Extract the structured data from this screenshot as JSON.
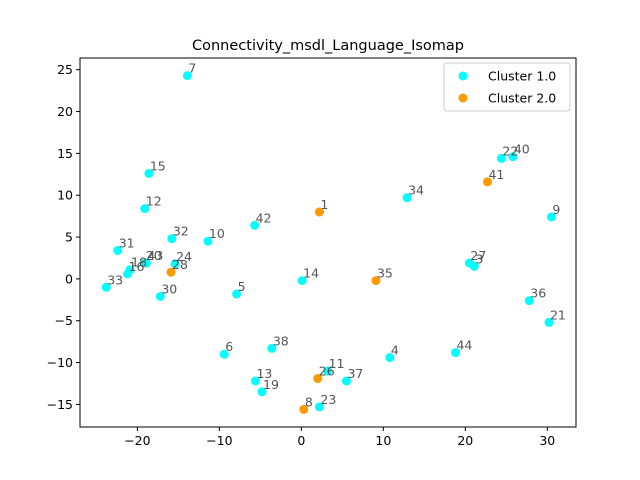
{
  "chart_data": {
    "type": "scatter",
    "title": "Connectivity_msdl_Language_Isomap",
    "xlabel": "",
    "ylabel": "",
    "xlim": [
      -27,
      33.5
    ],
    "ylim": [
      -17.7,
      26.4
    ],
    "xticks": [
      -20,
      -10,
      0,
      10,
      20,
      30
    ],
    "yticks": [
      -15,
      -10,
      -5,
      0,
      5,
      10,
      15,
      20,
      25
    ],
    "xtick_labels": [
      "−20",
      "−10",
      "0",
      "10",
      "20",
      "30"
    ],
    "ytick_labels": [
      "−15",
      "−10",
      "−5",
      "0",
      "5",
      "10",
      "15",
      "20",
      "25"
    ],
    "grid": false,
    "legend_position": "top-right",
    "series": [
      {
        "name": "Cluster 1.0",
        "color": "#00ffff",
        "points": [
          {
            "label": "3",
            "x": 21.1,
            "y": 1.5
          },
          {
            "label": "4",
            "x": 10.8,
            "y": -9.4
          },
          {
            "label": "5",
            "x": -7.9,
            "y": -1.8
          },
          {
            "label": "6",
            "x": -9.4,
            "y": -9.0
          },
          {
            "label": "7",
            "x": -13.9,
            "y": 24.3
          },
          {
            "label": "9",
            "x": 30.5,
            "y": 7.4
          },
          {
            "label": "10",
            "x": -11.4,
            "y": 4.5
          },
          {
            "label": "11",
            "x": 3.2,
            "y": -11.0
          },
          {
            "label": "12",
            "x": -19.1,
            "y": 8.4
          },
          {
            "label": "13",
            "x": -5.6,
            "y": -12.2
          },
          {
            "label": "14",
            "x": 0.1,
            "y": -0.2
          },
          {
            "label": "15",
            "x": -18.6,
            "y": 12.6
          },
          {
            "label": "16",
            "x": -21.2,
            "y": 0.6
          },
          {
            "label": "18",
            "x": -20.9,
            "y": 1.1
          },
          {
            "label": "19",
            "x": -4.8,
            "y": -13.5
          },
          {
            "label": "20",
            "x": -19.1,
            "y": 1.9
          },
          {
            "label": "21",
            "x": 30.2,
            "y": -5.2
          },
          {
            "label": "22",
            "x": 24.4,
            "y": 14.4
          },
          {
            "label": "23",
            "x": 2.2,
            "y": -15.3
          },
          {
            "label": "24",
            "x": -15.4,
            "y": 1.8
          },
          {
            "label": "27",
            "x": 20.5,
            "y": 1.9
          },
          {
            "label": "30",
            "x": -17.2,
            "y": -2.1
          },
          {
            "label": "31",
            "x": -22.4,
            "y": 3.4
          },
          {
            "label": "32",
            "x": -15.8,
            "y": 4.8
          },
          {
            "label": "33",
            "x": -23.8,
            "y": -1.0
          },
          {
            "label": "34",
            "x": 12.9,
            "y": 9.7
          },
          {
            "label": "36",
            "x": 27.8,
            "y": -2.6
          },
          {
            "label": "37",
            "x": 5.5,
            "y": -12.2
          },
          {
            "label": "38",
            "x": -3.6,
            "y": -8.3
          },
          {
            "label": "40",
            "x": 25.8,
            "y": 14.6
          },
          {
            "label": "42",
            "x": -5.7,
            "y": 6.4
          },
          {
            "label": "43",
            "x": -18.9,
            "y": 1.9
          },
          {
            "label": "44",
            "x": 18.8,
            "y": -8.8
          }
        ]
      },
      {
        "name": "Cluster 2.0",
        "color": "#ff9900",
        "points": [
          {
            "label": "1",
            "x": 2.2,
            "y": 8.0
          },
          {
            "label": "8",
            "x": 0.3,
            "y": -15.6
          },
          {
            "label": "26",
            "x": 2.0,
            "y": -11.9
          },
          {
            "label": "28",
            "x": -15.9,
            "y": 0.8
          },
          {
            "label": "35",
            "x": 9.1,
            "y": -0.2
          },
          {
            "label": "41",
            "x": 22.7,
            "y": 11.6
          }
        ]
      }
    ]
  }
}
